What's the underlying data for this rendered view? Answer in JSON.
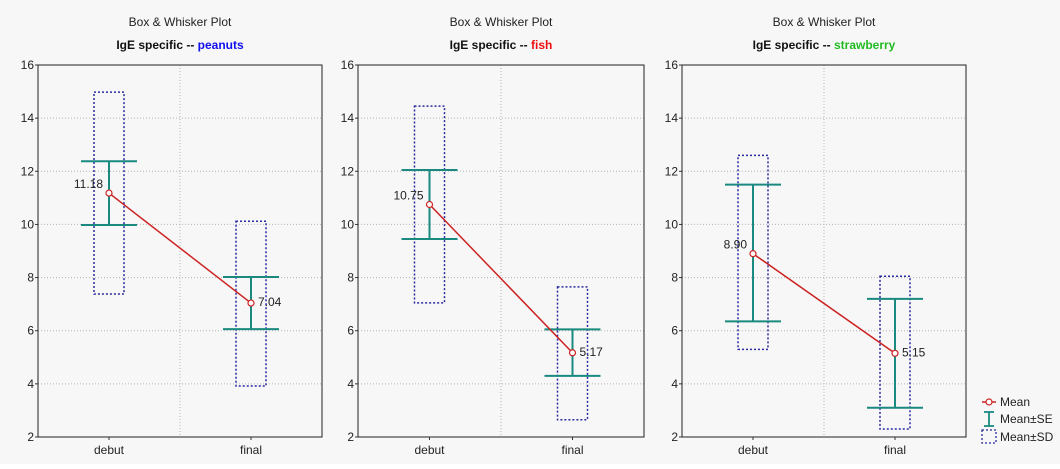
{
  "colors": {
    "mean": "#cc2222",
    "se": "#1a8a80",
    "sd": "#2a2aa0",
    "grid": "#b5b5b5",
    "peanuts": "#1010ee",
    "fish": "#ee1010",
    "strawberry": "#22bb22"
  },
  "legend": {
    "mean": "Mean",
    "se": "Mean±SE",
    "sd": "Mean±SD"
  },
  "chart_data": [
    {
      "type": "box",
      "title": "Box & Whisker Plot",
      "subtitle_prefix": "IgE specific  --  ",
      "subtitle_highlight": "peanuts",
      "highlight_color_key": "peanuts",
      "categories": [
        "debut",
        "final"
      ],
      "ylim": [
        2,
        16
      ],
      "yticks": [
        "2",
        "4",
        "6",
        "8",
        "10",
        "12",
        "14",
        "16"
      ],
      "mean": [
        11.18,
        7.04
      ],
      "mean_labels": [
        "11.18",
        "7.04"
      ],
      "se_low": [
        9.98,
        6.06
      ],
      "se_high": [
        12.38,
        8.02
      ],
      "sd_low": [
        7.38,
        3.92
      ],
      "sd_high": [
        14.98,
        10.12
      ]
    },
    {
      "type": "box",
      "title": "Box & Whisker Plot",
      "subtitle_prefix": "IgE specific  --  ",
      "subtitle_highlight": "fish",
      "highlight_color_key": "fish",
      "categories": [
        "debut",
        "final"
      ],
      "ylim": [
        2,
        16
      ],
      "yticks": [
        "2",
        "4",
        "6",
        "8",
        "10",
        "12",
        "14",
        "16"
      ],
      "mean": [
        10.75,
        5.17
      ],
      "mean_labels": [
        "10.75",
        "5.17"
      ],
      "se_low": [
        9.45,
        4.3
      ],
      "se_high": [
        12.05,
        6.05
      ],
      "sd_low": [
        7.05,
        2.65
      ],
      "sd_high": [
        14.45,
        7.65
      ]
    },
    {
      "type": "box",
      "title": "Box & Whisker Plot",
      "subtitle_prefix": "IgE specific  --  ",
      "subtitle_highlight": "strawberry",
      "highlight_color_key": "strawberry",
      "categories": [
        "debut",
        "final"
      ],
      "ylim": [
        2,
        16
      ],
      "yticks": [
        "2",
        "4",
        "6",
        "8",
        "10",
        "12",
        "14",
        "16"
      ],
      "mean": [
        8.9,
        5.15
      ],
      "mean_labels": [
        "8.90",
        "5.15"
      ],
      "se_low": [
        6.35,
        3.1
      ],
      "se_high": [
        11.5,
        7.2
      ],
      "sd_low": [
        5.3,
        2.3
      ],
      "sd_high": [
        12.6,
        8.05
      ]
    }
  ]
}
